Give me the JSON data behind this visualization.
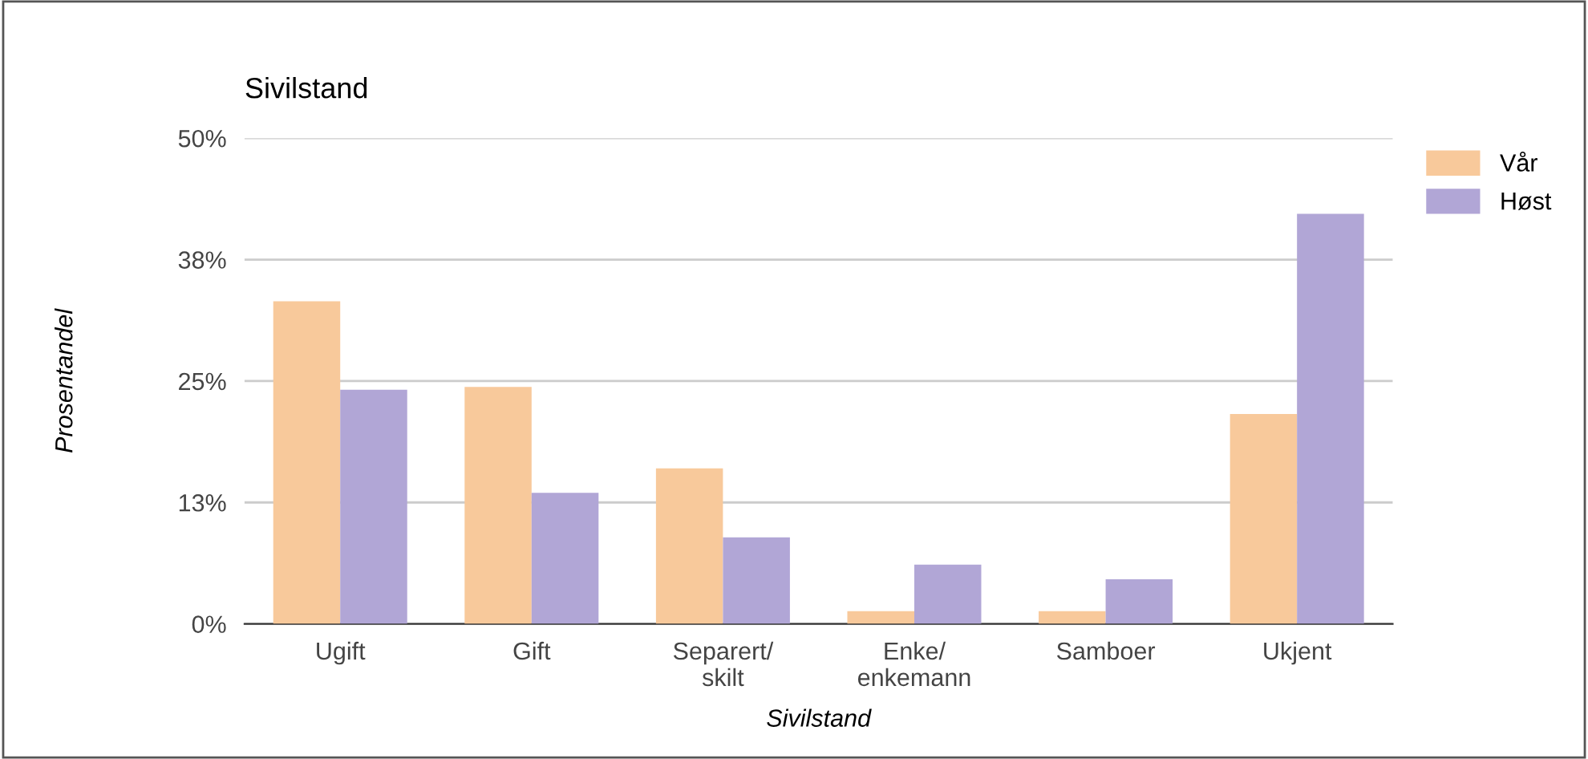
{
  "chart_data": {
    "type": "bar",
    "title": "Sivilstand",
    "xlabel": "Sivilstand",
    "ylabel": "Prosentandel",
    "categories": [
      "Ugift",
      "Gift",
      "Separert/\nskilt",
      "Enke/\nenkemann",
      "Samboer",
      "Ukjent"
    ],
    "series": [
      {
        "name": "Vår",
        "color": "#f8c99b",
        "values": [
          33.2,
          24.4,
          16.0,
          1.3,
          1.3,
          21.6
        ]
      },
      {
        "name": "Høst",
        "color": "#b1a6d6",
        "values": [
          24.1,
          13.5,
          8.9,
          6.1,
          4.6,
          42.2
        ]
      }
    ],
    "ylim": [
      0,
      50
    ],
    "yticks": [
      {
        "value": 0,
        "label": "0%"
      },
      {
        "value": 12.5,
        "label": "13%"
      },
      {
        "value": 25,
        "label": "25%"
      },
      {
        "value": 37.5,
        "label": "38%"
      },
      {
        "value": 50,
        "label": "50%"
      }
    ],
    "grid": "y",
    "legend": "top right"
  }
}
